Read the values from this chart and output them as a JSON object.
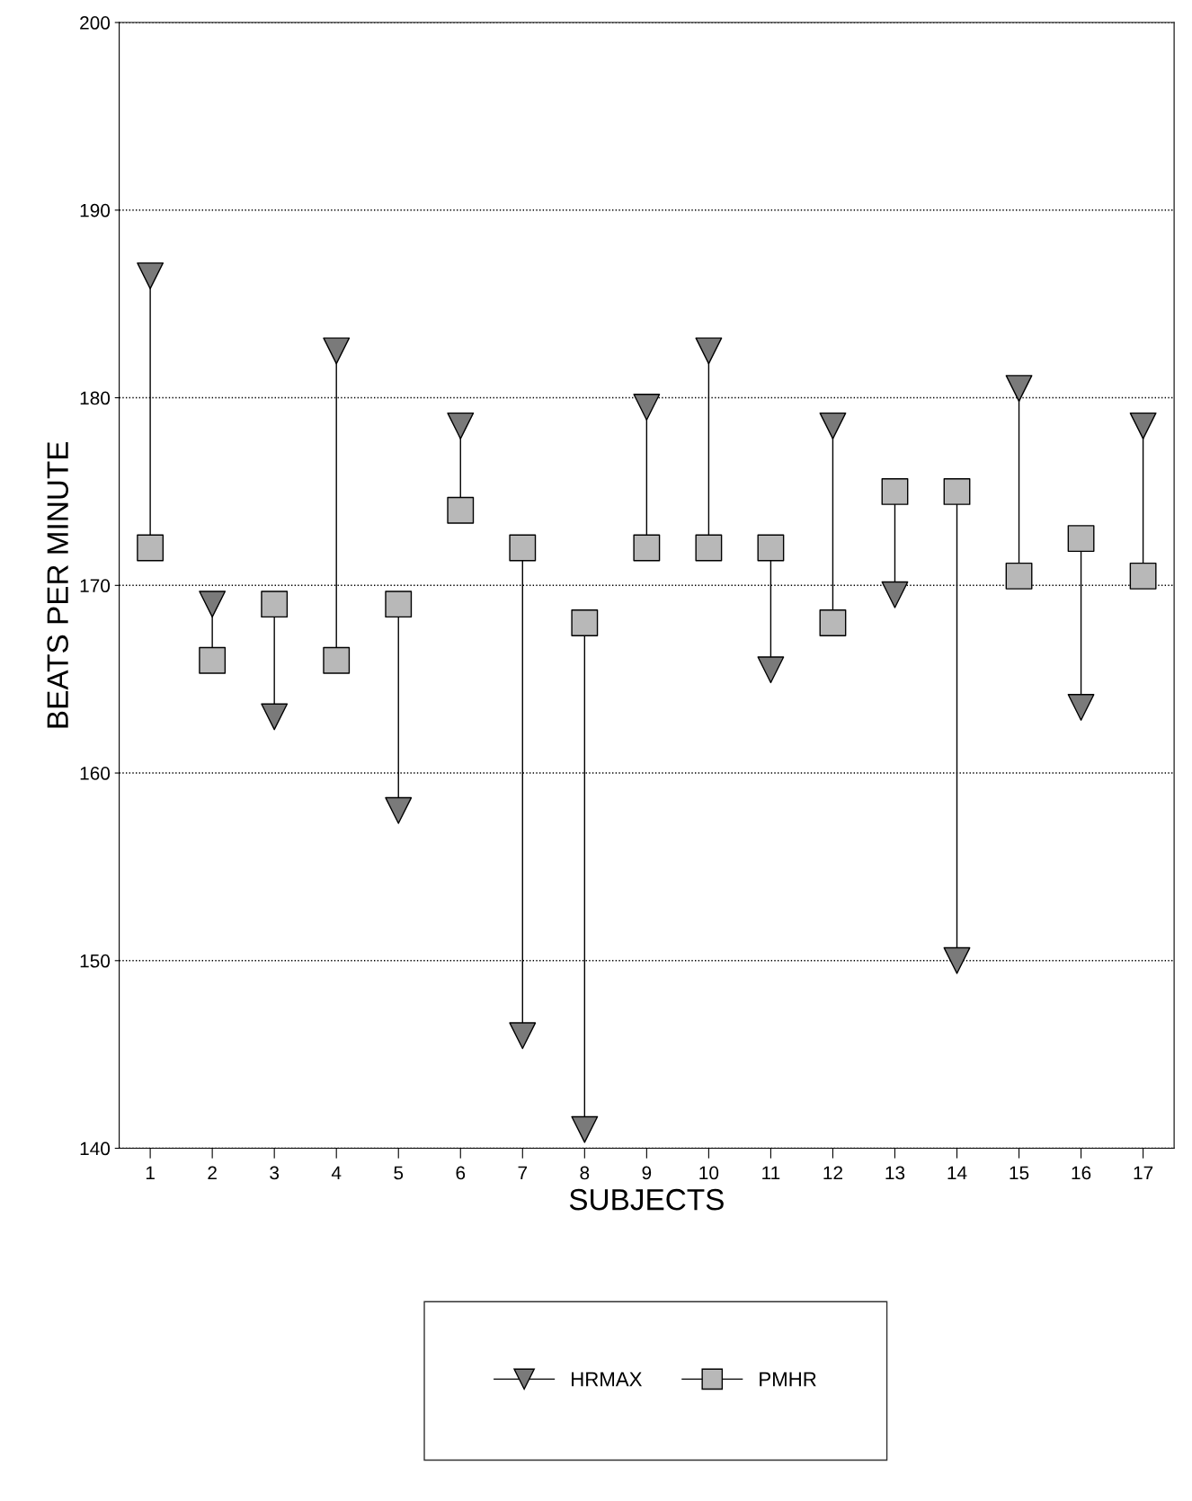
{
  "chart_data": {
    "type": "scatter",
    "xlabel": "SUBJECTS",
    "ylabel": "BEATS PER MINUTE",
    "categories": [
      "1",
      "2",
      "3",
      "4",
      "5",
      "6",
      "7",
      "8",
      "9",
      "10",
      "11",
      "12",
      "13",
      "14",
      "15",
      "16",
      "17"
    ],
    "series": [
      {
        "name": "HRMAX",
        "color": "#7a7a7a",
        "marker": "triangle",
        "values": [
          186.5,
          169,
          163,
          182.5,
          158,
          178.5,
          146,
          141,
          179.5,
          182.5,
          165.5,
          178.5,
          169.5,
          150,
          180.5,
          163.5,
          178.5
        ]
      },
      {
        "name": "PMHR",
        "color": "#b8b8b8",
        "marker": "square",
        "values": [
          172,
          166,
          169,
          166,
          169,
          174,
          172,
          168,
          172,
          172,
          172,
          168,
          175,
          175,
          170.5,
          172.5,
          170.5
        ]
      }
    ],
    "ylim": [
      140,
      200
    ],
    "yticks": [
      140,
      150,
      160,
      170,
      180,
      190,
      200
    ],
    "grid": "y",
    "legend": "bottom"
  }
}
